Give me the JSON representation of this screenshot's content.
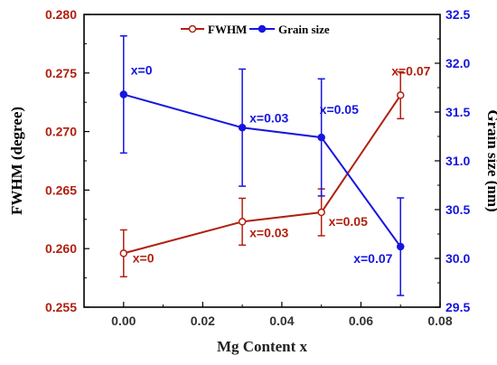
{
  "chart_data": {
    "type": "line",
    "xlabel": "Mg Content x",
    "ylabel_left": "FWHM (degree)",
    "ylabel_right": "Grain size (nm)",
    "xlim": [
      -0.01,
      0.08
    ],
    "ylim_left": [
      0.255,
      0.28
    ],
    "ylim_right": [
      29.5,
      32.5
    ],
    "x_ticks": [
      "0.00",
      "0.02",
      "0.04",
      "0.06",
      "0.08"
    ],
    "y_ticks_left": [
      "0.255",
      "0.260",
      "0.265",
      "0.270",
      "0.275",
      "0.280"
    ],
    "y_ticks_right": [
      "29.5",
      "30.0",
      "30.5",
      "31.0",
      "31.5",
      "32.0",
      "32.5"
    ],
    "legend_position": "top-center",
    "series": [
      {
        "name": "FWHM",
        "axis": "left",
        "color": "#b02010",
        "marker": "open-circle",
        "x": [
          0.0,
          0.03,
          0.05,
          0.07
        ],
        "y": [
          0.2596,
          0.2623,
          0.2631,
          0.2731
        ],
        "err": [
          0.002,
          0.002,
          0.002,
          0.002
        ],
        "labels": [
          "x=0",
          "x=0.03",
          "x=0.05",
          "x=0.07"
        ]
      },
      {
        "name": "Grain size",
        "axis": "right",
        "color": "#1515e0",
        "marker": "filled-circle",
        "x": [
          0.0,
          0.03,
          0.05,
          0.07
        ],
        "y": [
          31.68,
          31.34,
          31.24,
          30.12
        ],
        "err": [
          0.6,
          0.6,
          0.6,
          0.5
        ],
        "labels": [
          "x=0",
          "x=0.03",
          "x=0.05",
          "x=0.07"
        ]
      }
    ]
  }
}
